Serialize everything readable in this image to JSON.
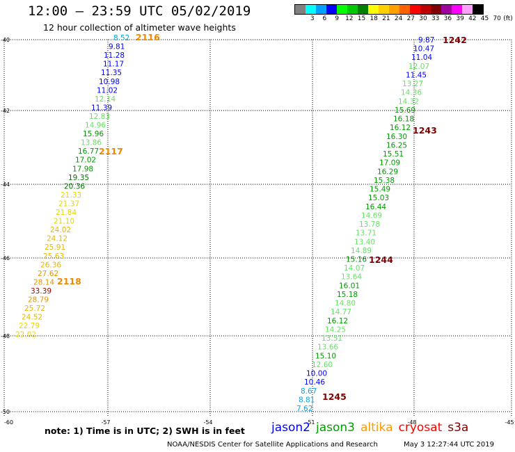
{
  "header": {
    "title": "12:00 – 23:59 UTC 05/02/2019",
    "subtitle": "12 hour collection of altimeter wave heights"
  },
  "legend": {
    "unit": "(ft)",
    "colors": [
      "#808080",
      "#00ffff",
      "#00a0ff",
      "#0000ff",
      "#00ff00",
      "#00c800",
      "#008000",
      "#ffff00",
      "#ffd000",
      "#ffa000",
      "#ff6000",
      "#ff0000",
      "#c00000",
      "#800000",
      "#a000a0",
      "#ff00ff",
      "#ffa0ff",
      "#000000"
    ],
    "labels": [
      "3",
      "6",
      "9",
      "12",
      "15",
      "18",
      "21",
      "24",
      "27",
      "30",
      "33",
      "36",
      "39",
      "42",
      "45",
      "70"
    ]
  },
  "map": {
    "lat_labels": [
      "-40",
      "-42",
      "-44",
      "-46",
      "-48",
      "-50"
    ],
    "lon_labels": [
      "-60",
      "-57",
      "-54",
      "-51",
      "-48",
      "-45"
    ],
    "passes_left": {
      "wave_heights": [
        "8.52",
        "9.81",
        "11.28",
        "11.17",
        "11.35",
        "10.98",
        "11.02",
        "12.14",
        "11.39",
        "12.83",
        "14.96",
        "15.96",
        "13.86",
        "16.77",
        "17.02",
        "17.98",
        "19.35",
        "20.36",
        "21.33",
        "21.37",
        "21.84",
        "21.10",
        "24.02",
        "24.12",
        "25.91",
        "25.63",
        "26.36",
        "27.62",
        "28.14",
        "33.39",
        "28.79",
        "25.72",
        "24.52",
        "22.79",
        "22.02"
      ],
      "time_labels": [
        "2116",
        "2117",
        "2118"
      ]
    },
    "passes_right": {
      "wave_heights": [
        "9.87",
        "10.47",
        "11.04",
        "12.07",
        "11.45",
        "13.27",
        "14.36",
        "14.32",
        "15.69",
        "16.18",
        "16.12",
        "16.30",
        "16.25",
        "15.51",
        "17.09",
        "16.29",
        "15.38",
        "15.49",
        "15.03",
        "16.44",
        "14.69",
        "13.78",
        "13.71",
        "13.40",
        "14.89",
        "15.16",
        "14.07",
        "13.64",
        "16.01",
        "15.18",
        "14.80",
        "14.77",
        "16.12",
        "14.25",
        "13.51",
        "13.66",
        "15.10",
        "12.60",
        "10.00",
        "10.46",
        "8.67",
        "8.81",
        "7.62"
      ],
      "time_labels": [
        "1242",
        "1243",
        "1244",
        "1245"
      ]
    }
  },
  "footer": {
    "note": "note: 1) Time is in UTC; 2) SWH is in feet",
    "satellites": [
      {
        "name": "jason2",
        "color": "#0000ff"
      },
      {
        "name": "jason3",
        "color": "#00a000"
      },
      {
        "name": "altika",
        "color": "#ff9900"
      },
      {
        "name": "cryosat",
        "color": "#ff0000"
      },
      {
        "name": "s3a",
        "color": "#800000"
      }
    ],
    "credit": "NOAA/NESDIS Center for Satellite Applications and Research",
    "timestamp": "May  3 12:27:44 UTC 2019"
  }
}
